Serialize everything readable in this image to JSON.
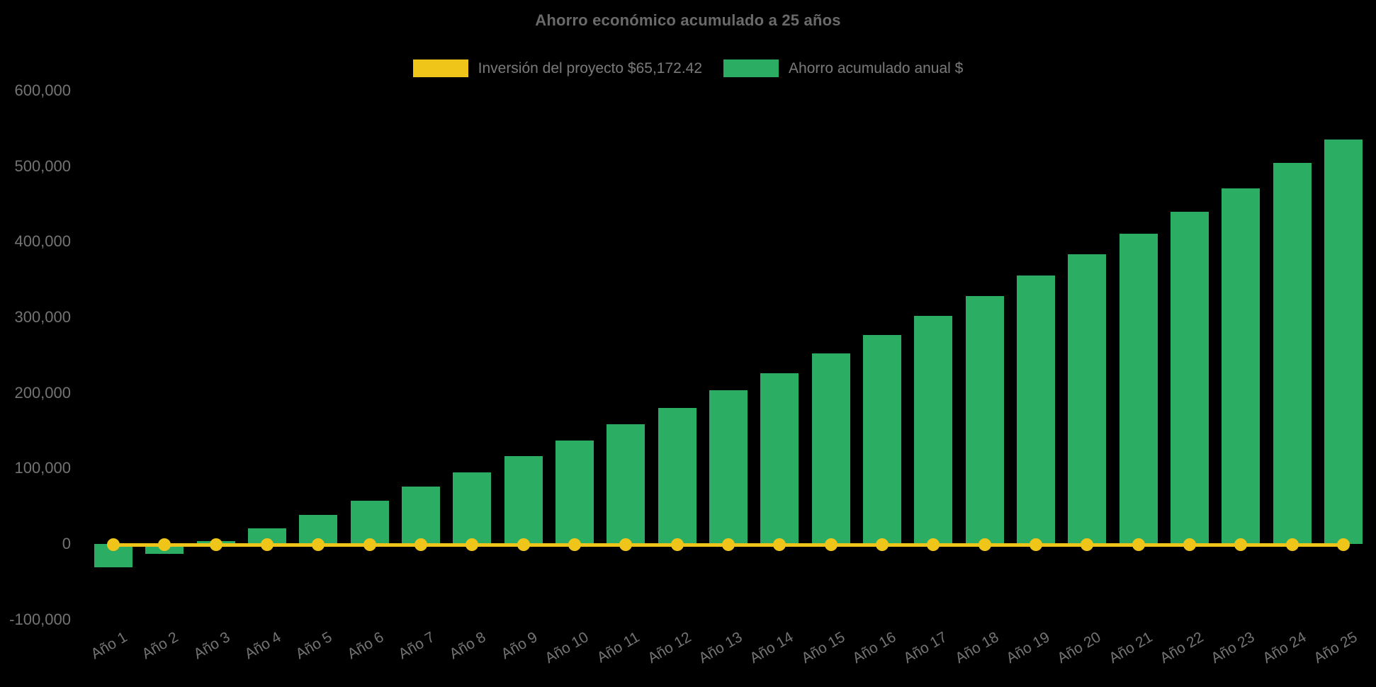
{
  "chart_data": {
    "type": "bar",
    "title": "Ahorro económico acumulado a 25 años",
    "background": "#000000",
    "text_color": "#747474",
    "grid": false,
    "legend_position": "top",
    "categories": [
      "Año 1",
      "Año 2",
      "Año 3",
      "Año 4",
      "Año 5",
      "Año 6",
      "Año 7",
      "Año 8",
      "Año 9",
      "Año 10",
      "Año 11",
      "Año 12",
      "Año 13",
      "Año 14",
      "Año 15",
      "Año 16",
      "Año 17",
      "Año 18",
      "Año 19",
      "Año 20",
      "Año 21",
      "Año 22",
      "Año 23",
      "Año 24",
      "Año 25"
    ],
    "series": [
      {
        "name": "Inversión del proyecto $65,172.42",
        "type": "line",
        "color": "#efc51a",
        "values": [
          0,
          0,
          0,
          0,
          0,
          0,
          0,
          0,
          0,
          0,
          0,
          0,
          0,
          0,
          0,
          0,
          0,
          0,
          0,
          0,
          0,
          0,
          0,
          0,
          0
        ]
      },
      {
        "name": "Ahorro acumulado anual $",
        "type": "bar",
        "color": "#2bad63",
        "values": [
          -31000,
          -13000,
          4000,
          21000,
          38000,
          57000,
          76000,
          95000,
          116000,
          137000,
          158000,
          180000,
          203000,
          226000,
          252000,
          277000,
          302000,
          328000,
          355000,
          383000,
          411000,
          440000,
          471000,
          504000,
          535000
        ]
      }
    ],
    "y_axis": {
      "range": [
        -100000,
        600000
      ],
      "ticks": [
        {
          "label": "600,000",
          "value": 600000
        },
        {
          "label": "500,000",
          "value": 500000
        },
        {
          "label": "400,000",
          "value": 400000
        },
        {
          "label": "300,000",
          "value": 300000
        },
        {
          "label": "200,000",
          "value": 200000
        },
        {
          "label": "100,000",
          "value": 100000
        },
        {
          "label": "0",
          "value": 0
        },
        {
          "label": "-100,000",
          "value": -100000
        }
      ]
    },
    "x_axis": {
      "label_rotation_deg": -30
    }
  }
}
